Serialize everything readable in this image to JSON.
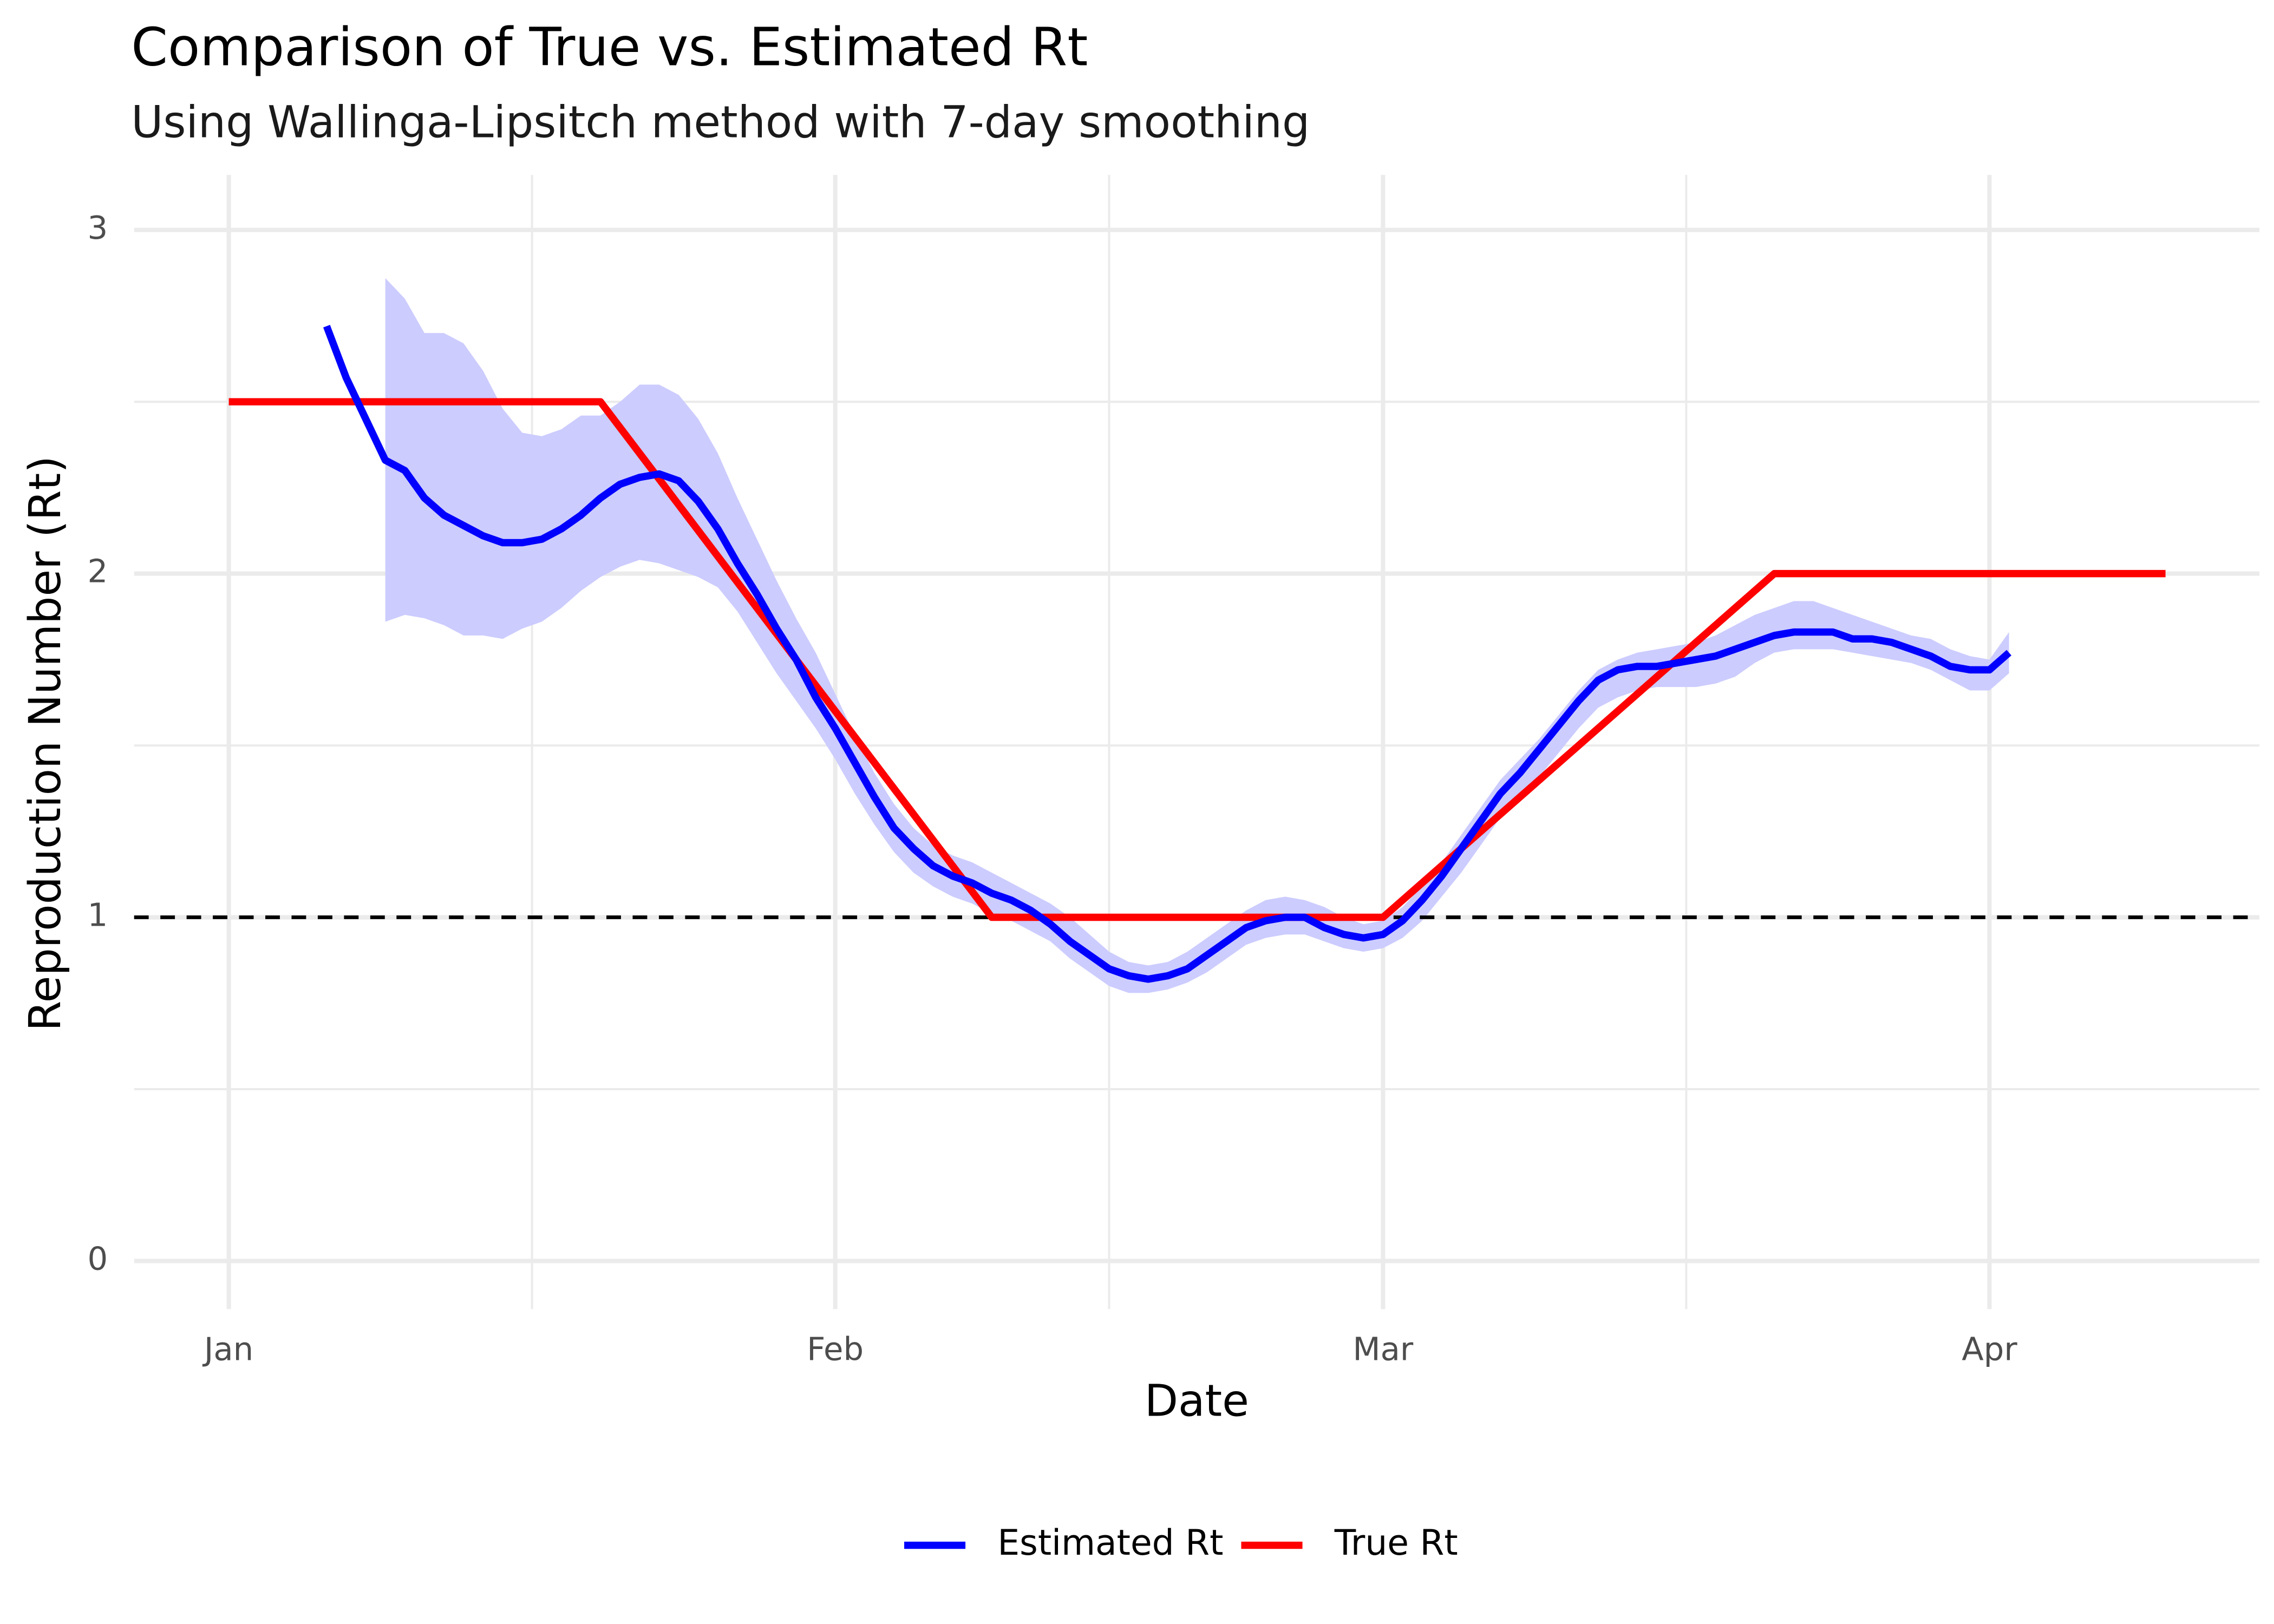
{
  "chart_data": {
    "type": "line",
    "title": "Comparison of True vs. Estimated Rt",
    "subtitle": "Using Wallinga-Lipsitch method with 7-day smoothing",
    "x_label": "Date",
    "y_label": "Reproduction Number (Rt)",
    "xlim": [
      -4.84,
      103.8
    ],
    "xticks": [
      {
        "value": 0,
        "label": "Jan"
      },
      {
        "value": 31,
        "label": "Feb"
      },
      {
        "value": 59,
        "label": "Mar"
      },
      {
        "value": 90,
        "label": "Apr"
      }
    ],
    "ylim": [
      -0.14,
      3.16
    ],
    "yticks": [
      0,
      1,
      2,
      3
    ],
    "grid": true,
    "reference_line": 1,
    "legend": "bottom",
    "series": [
      {
        "name": "Estimated Rt",
        "color": "#0000ff",
        "ribbon_color": "#ccccff",
        "x": [
          5,
          6,
          7,
          8,
          9,
          10,
          11,
          12,
          13,
          14,
          15,
          16,
          17,
          18,
          19,
          20,
          21,
          22,
          23,
          24,
          25,
          26,
          27,
          28,
          29,
          30,
          31,
          32,
          33,
          34,
          35,
          36,
          37,
          38,
          39,
          40,
          41,
          42,
          43,
          44,
          45,
          46,
          47,
          48,
          49,
          50,
          51,
          52,
          53,
          54,
          55,
          56,
          57,
          58,
          59,
          60,
          61,
          62,
          63,
          64,
          65,
          66,
          67,
          68,
          69,
          70,
          71,
          72,
          73,
          74,
          75,
          76,
          77,
          78,
          79,
          80,
          81,
          82,
          83,
          84,
          85,
          86,
          87,
          88,
          89,
          90,
          91
        ],
        "values": [
          2.72,
          2.57,
          2.45,
          2.33,
          2.3,
          2.22,
          2.17,
          2.14,
          2.11,
          2.09,
          2.09,
          2.1,
          2.13,
          2.17,
          2.22,
          2.26,
          2.28,
          2.29,
          2.27,
          2.21,
          2.13,
          2.03,
          1.94,
          1.84,
          1.75,
          1.64,
          1.55,
          1.45,
          1.35,
          1.26,
          1.2,
          1.15,
          1.12,
          1.1,
          1.07,
          1.05,
          1.02,
          0.98,
          0.93,
          0.89,
          0.85,
          0.83,
          0.82,
          0.83,
          0.85,
          0.89,
          0.93,
          0.97,
          0.99,
          1.0,
          1.0,
          0.97,
          0.95,
          0.94,
          0.95,
          0.99,
          1.05,
          1.12,
          1.2,
          1.28,
          1.36,
          1.42,
          1.49,
          1.56,
          1.63,
          1.69,
          1.72,
          1.73,
          1.73,
          1.74,
          1.75,
          1.76,
          1.78,
          1.8,
          1.82,
          1.83,
          1.83,
          1.83,
          1.81,
          1.81,
          1.8,
          1.78,
          1.76,
          1.73,
          1.72,
          1.72,
          1.77
        ],
        "lower": [
          null,
          null,
          null,
          1.86,
          1.88,
          1.87,
          1.85,
          1.82,
          1.82,
          1.81,
          1.84,
          1.86,
          1.9,
          1.95,
          1.99,
          2.02,
          2.04,
          2.03,
          2.01,
          1.99,
          1.96,
          1.89,
          1.8,
          1.71,
          1.63,
          1.55,
          1.46,
          1.36,
          1.27,
          1.19,
          1.13,
          1.09,
          1.06,
          1.04,
          1.01,
          0.99,
          0.96,
          0.93,
          0.88,
          0.84,
          0.8,
          0.78,
          0.78,
          0.79,
          0.81,
          0.84,
          0.88,
          0.92,
          0.94,
          0.95,
          0.95,
          0.93,
          0.91,
          0.9,
          0.91,
          0.94,
          0.99,
          1.06,
          1.13,
          1.21,
          1.29,
          1.35,
          1.41,
          1.48,
          1.55,
          1.61,
          1.64,
          1.66,
          1.67,
          1.67,
          1.67,
          1.68,
          1.7,
          1.74,
          1.77,
          1.78,
          1.78,
          1.78,
          1.77,
          1.76,
          1.75,
          1.74,
          1.72,
          1.69,
          1.66,
          1.66,
          1.71
        ],
        "upper": [
          null,
          null,
          null,
          2.86,
          2.8,
          2.7,
          2.7,
          2.67,
          2.59,
          2.48,
          2.41,
          2.4,
          2.42,
          2.46,
          2.46,
          2.5,
          2.55,
          2.55,
          2.52,
          2.45,
          2.35,
          2.22,
          2.1,
          1.98,
          1.87,
          1.77,
          1.65,
          1.53,
          1.42,
          1.33,
          1.26,
          1.21,
          1.18,
          1.16,
          1.13,
          1.1,
          1.07,
          1.04,
          1.0,
          0.95,
          0.9,
          0.87,
          0.86,
          0.87,
          0.9,
          0.94,
          0.98,
          1.02,
          1.05,
          1.06,
          1.05,
          1.03,
          1.0,
          0.98,
          0.99,
          1.03,
          1.09,
          1.16,
          1.24,
          1.32,
          1.4,
          1.46,
          1.52,
          1.59,
          1.66,
          1.72,
          1.75,
          1.77,
          1.78,
          1.79,
          1.8,
          1.82,
          1.85,
          1.88,
          1.9,
          1.92,
          1.92,
          1.9,
          1.88,
          1.86,
          1.84,
          1.82,
          1.81,
          1.78,
          1.76,
          1.75,
          1.83
        ]
      },
      {
        "name": "True Rt",
        "color": "#ff0000",
        "x": [
          0,
          19,
          39,
          59,
          79,
          99
        ],
        "values": [
          2.5,
          2.5,
          1,
          1,
          2,
          2
        ]
      }
    ]
  }
}
